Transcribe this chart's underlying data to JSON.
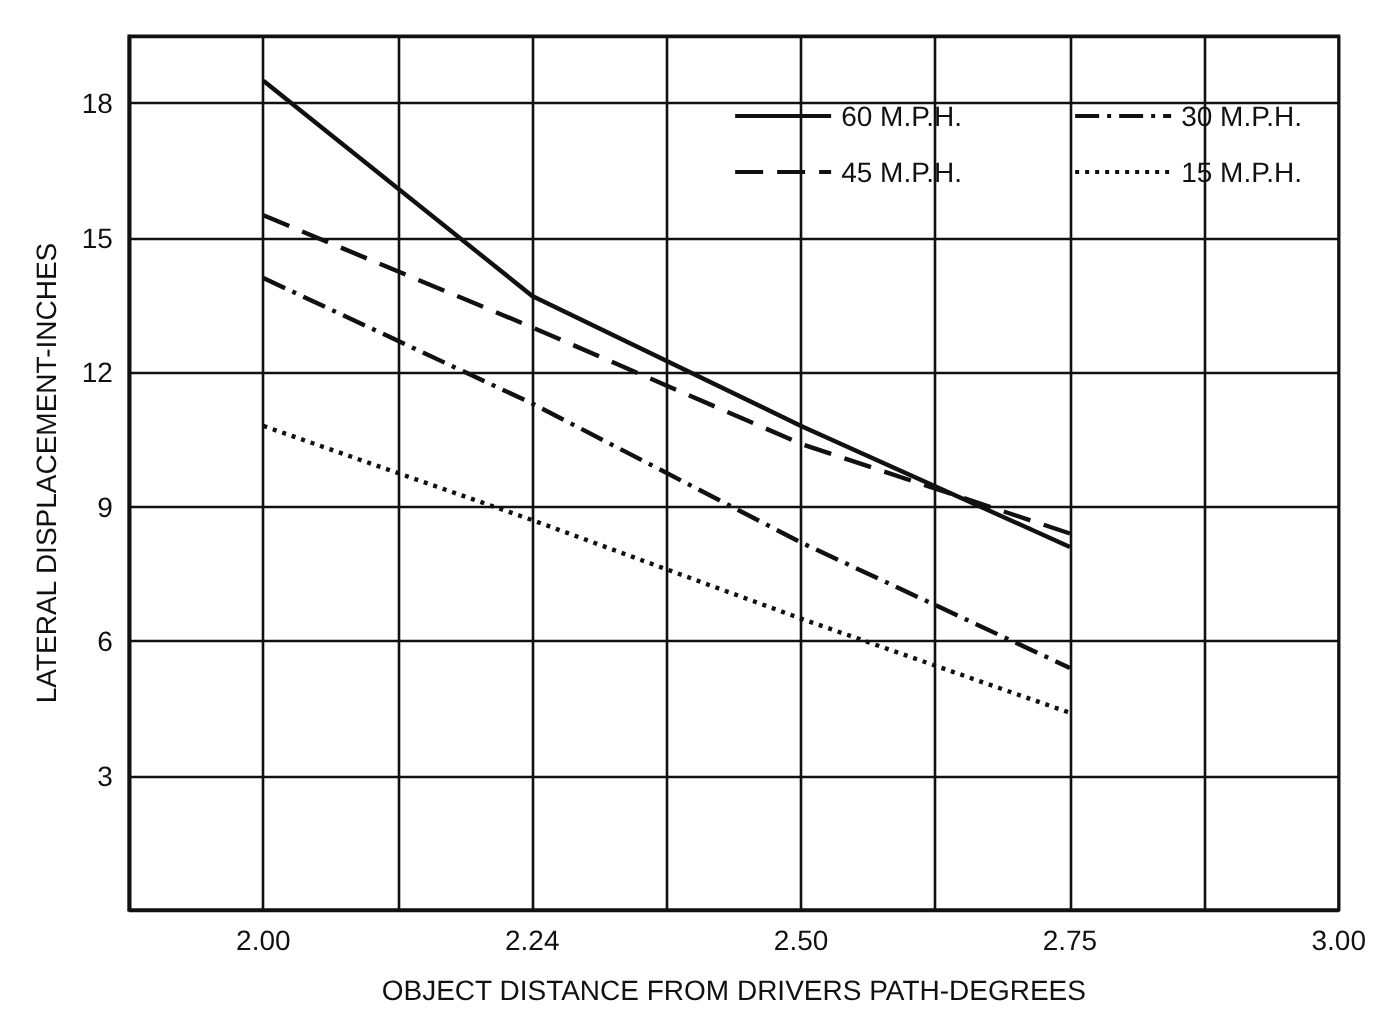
{
  "chart_data": {
    "type": "line",
    "xlabel": "OBJECT DISTANCE FROM DRIVERS PATH-DEGREES",
    "ylabel": "LATERAL DISPLACEMENT-INCHES",
    "categories": [
      null,
      "2.00",
      null,
      "2.24",
      null,
      "2.50",
      null,
      "2.75",
      null,
      "3.00"
    ],
    "series": [
      {
        "name": "60 M.P.H.",
        "color": "#111111",
        "line_style": "solid",
        "values": [
          null,
          18.5,
          null,
          13.7,
          null,
          10.8,
          null,
          8.1,
          null,
          null
        ]
      },
      {
        "name": "45 M.P.H.",
        "color": "#111111",
        "line_style": "dashed",
        "values": [
          null,
          15.5,
          null,
          13.0,
          null,
          10.4,
          null,
          8.4,
          null,
          null
        ]
      },
      {
        "name": "30 M.P.H.",
        "color": "#111111",
        "line_style": "dashdot",
        "values": [
          null,
          14.1,
          null,
          11.3,
          null,
          8.2,
          null,
          5.4,
          null,
          null
        ]
      },
      {
        "name": "15 M.P.H.",
        "color": "#111111",
        "line_style": "dotted",
        "values": [
          null,
          10.8,
          null,
          8.7,
          null,
          6.5,
          null,
          4.4,
          null,
          null
        ]
      }
    ],
    "ylim": [
      0,
      19.5
    ],
    "yticks": [
      3,
      6,
      9,
      12,
      15,
      18
    ],
    "grid": true,
    "legend": "top right",
    "marker": "none"
  }
}
